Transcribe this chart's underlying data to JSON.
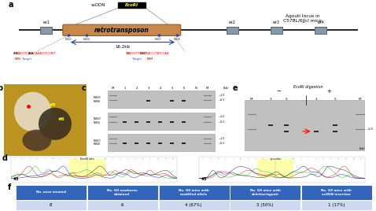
{
  "background_color": "#ffffff",
  "retrotransposon_color": "#c8884a",
  "retrotransposon_edge": "#995522",
  "exon_color": "#8899aa",
  "exon_edge": "#556677",
  "chr_line_color": "#000000",
  "kb_arrow_color": "#1144cc",
  "table_header_color": "#3366bb",
  "table_row_color": "#ccd9ee",
  "table_headers": [
    "No. mice treated",
    "No. G0 newborns\nobtained",
    "No. G0 mice with\nmodified allele",
    "No. G0 mice with\ndeletion/agouti",
    "No. G0 mice with\nssODN insertion"
  ],
  "table_data": [
    "8",
    "6",
    "4 (67%)",
    "3 (50%)",
    "1 (17%)"
  ],
  "panel_labels": [
    "a",
    "b",
    "c",
    "d",
    "e",
    "f"
  ],
  "agouti_text": "Agouti locus in\nC57BL/6JJcl mice",
  "kb_label": "16.2kb",
  "ssodn_label": "ssODN",
  "ecori_label": "EcoRI",
  "retro_label": "retrotransposon",
  "left_seq_black1": "ATAC",
  "left_seq_red": "CCAGTTCGACTAAATGTCCATT",
  "left_seq_black2": "AGA",
  "right_seq_black1": "TCC",
  "right_seq_red": "AGGGTTTAACGACCCTATCGAA",
  "right_seq_black2": "GGTT",
  "pam_color": "#ff0000",
  "target_color": "#2255cc",
  "gel_bg": "#c0c0c0",
  "gel_dark_bg": "#a0a0a0",
  "band_color": "#111111",
  "ecori_digestion_label": "EcoRI digestion",
  "seq_colors_A": "#00bb00",
  "seq_colors_T": "#ee0000",
  "seq_colors_G": "#111111",
  "seq_colors_C": "#0000cc",
  "highlight_color": "#ffff88"
}
